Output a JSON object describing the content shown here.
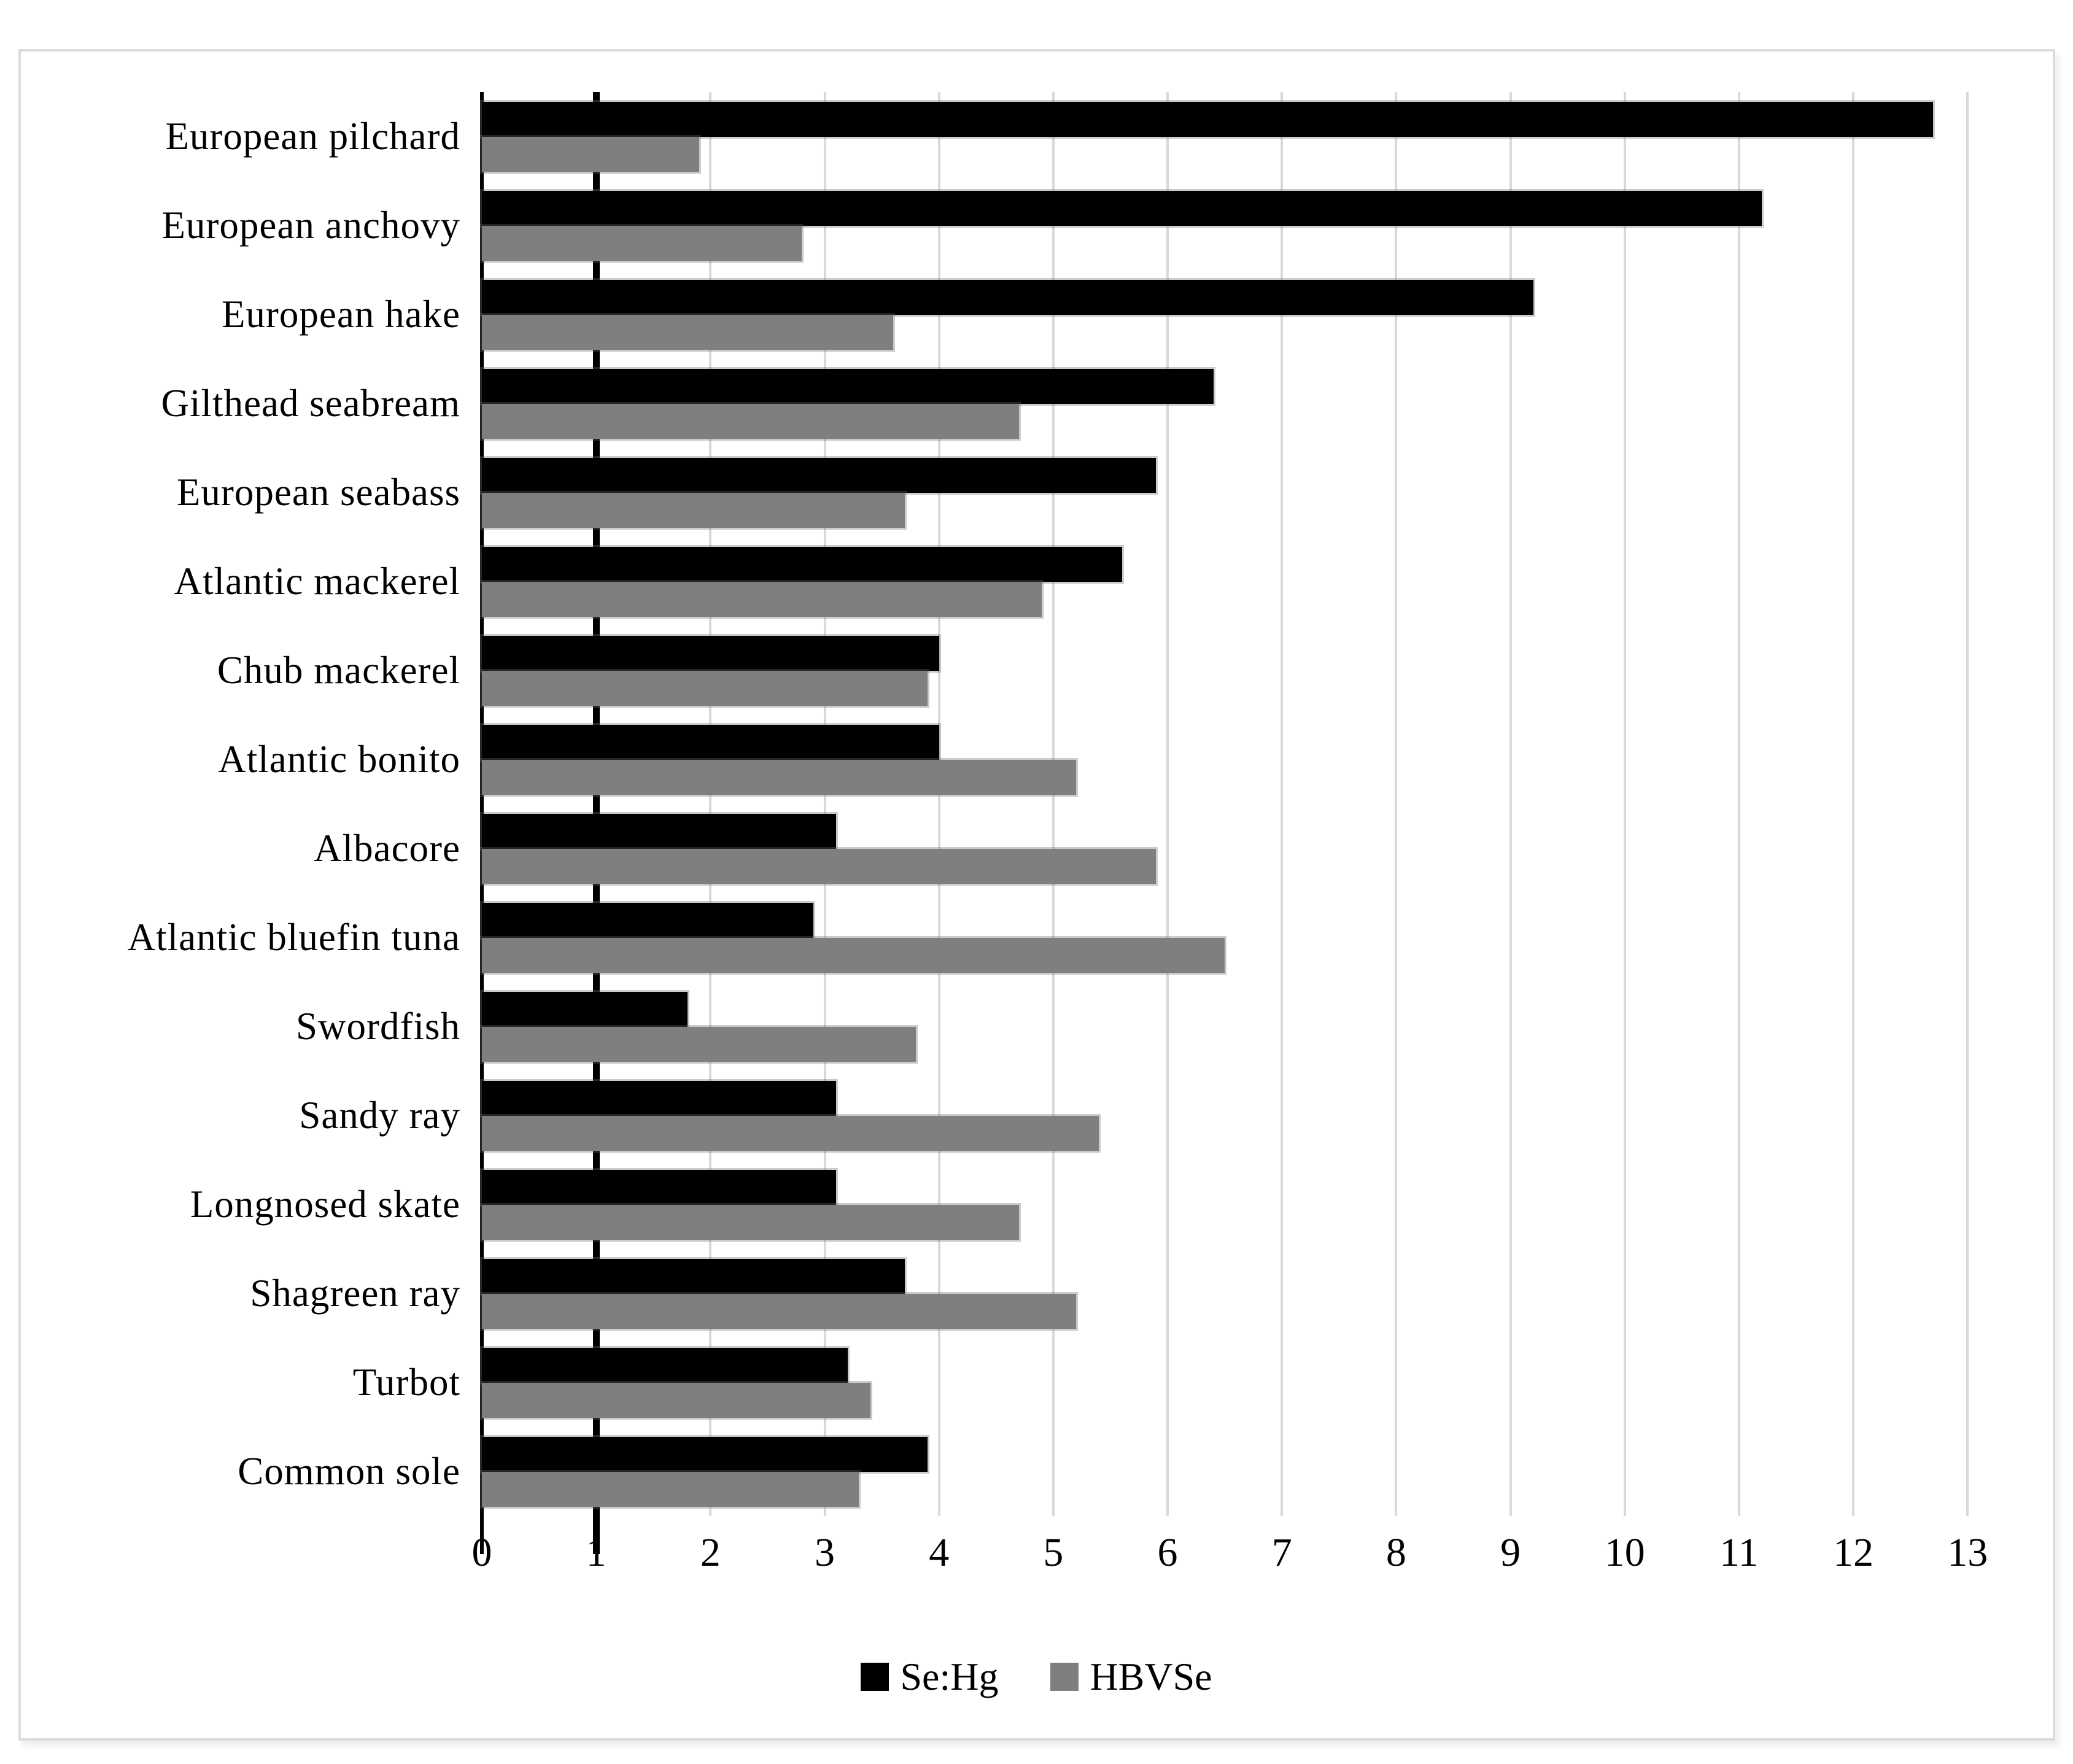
{
  "chart_data": {
    "type": "bar",
    "orientation": "horizontal",
    "title": "",
    "xlabel": "",
    "ylabel": "",
    "categories": [
      "European pilchard",
      "European anchovy",
      "European hake",
      "Gilthead seabream",
      "European seabass",
      "Atlantic mackerel",
      "Chub mackerel",
      "Atlantic bonito",
      "Albacore",
      "Atlantic bluefin tuna",
      "Swordfish",
      "Sandy ray",
      "Longnosed skate",
      "Shagreen ray",
      "Turbot",
      "Common sole"
    ],
    "series": [
      {
        "name": "Se:Hg",
        "color": "#000000",
        "values": [
          12.7,
          11.2,
          9.2,
          6.4,
          5.9,
          5.6,
          4.0,
          4.0,
          3.1,
          2.9,
          1.8,
          3.1,
          3.1,
          3.7,
          3.2,
          3.9
        ]
      },
      {
        "name": "HBVSe",
        "color": "#7F7F7F",
        "values": [
          1.9,
          2.8,
          3.6,
          4.7,
          3.7,
          4.9,
          3.9,
          5.2,
          5.9,
          6.5,
          3.8,
          5.4,
          4.7,
          5.2,
          3.4,
          3.3
        ]
      }
    ],
    "xlim": [
      0,
      13
    ],
    "xticks": [
      0,
      1,
      2,
      3,
      4,
      5,
      6,
      7,
      8,
      9,
      10,
      11,
      12,
      13
    ],
    "reference_line_x": 1,
    "grid": true,
    "legend_position": "bottom",
    "colors": {
      "background": "#FFFFFF",
      "gridline": "#D9D9D9",
      "axis": "#000000",
      "figure_border": "#DCDCDC"
    }
  }
}
